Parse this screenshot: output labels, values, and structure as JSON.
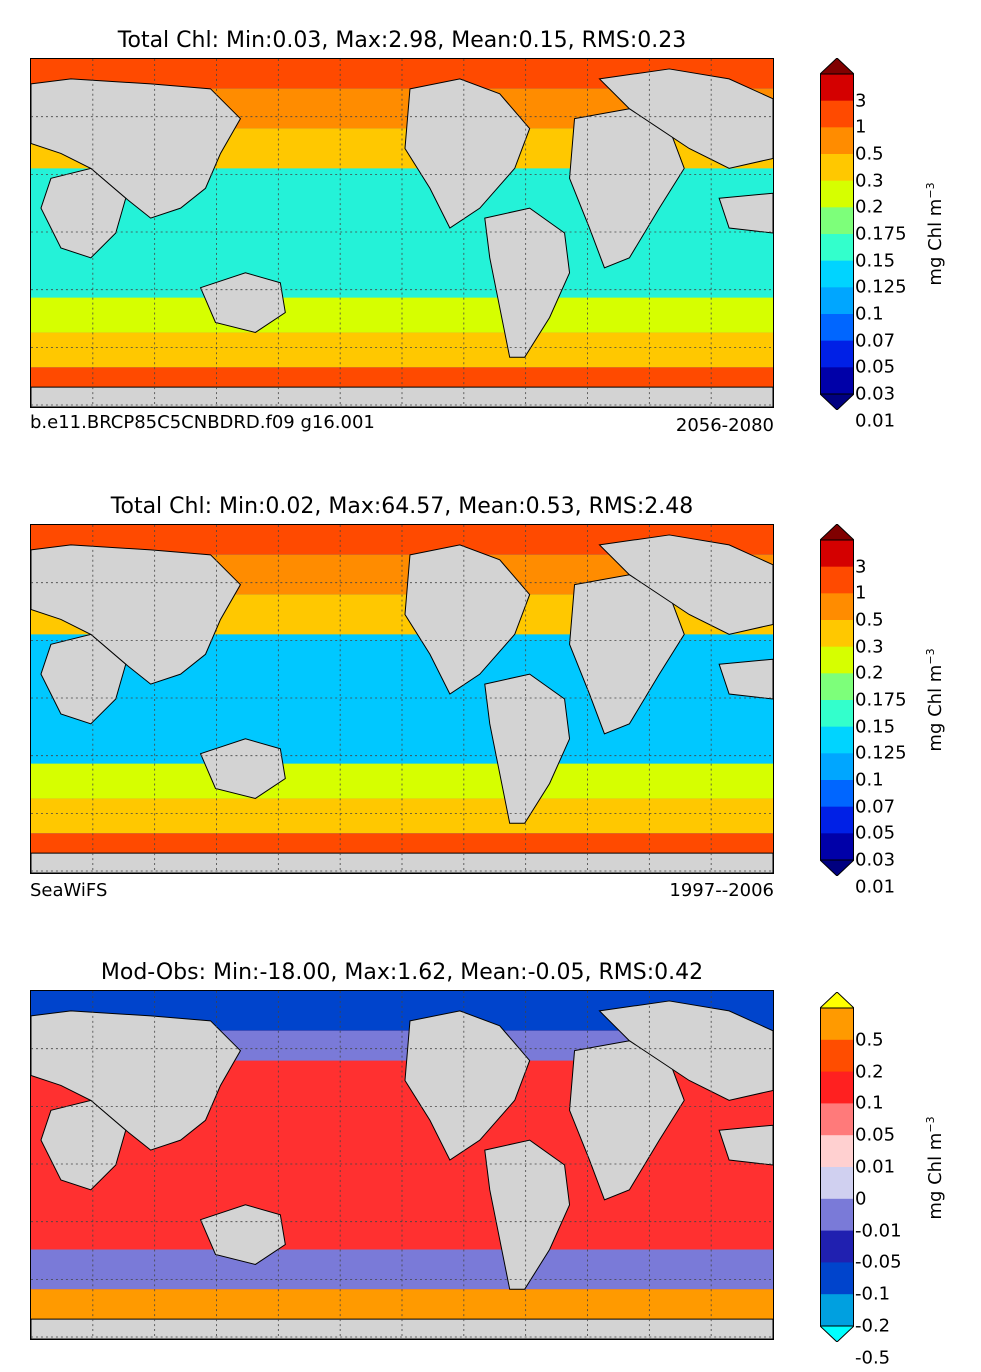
{
  "panels": [
    {
      "title": "Total Chl: Min:0.03, Max:2.98, Mean:0.15, RMS:0.23",
      "caption_left": "b.e11.BRCP85C5CNBDRD.f09 g16.001",
      "caption_right": "2056-2080",
      "colorbar_labels": [
        "3",
        "1",
        "0.5",
        "0.3",
        "0.2",
        "0.175",
        "0.15",
        "0.125",
        "0.1",
        "0.07",
        "0.05",
        "0.03",
        "0.01"
      ],
      "colorbar_units": "mg Chl m",
      "colorbar_units_exp": "−3",
      "colors": [
        "#800000",
        "#d40000",
        "#ff4a00",
        "#ff8c00",
        "#ffc800",
        "#d6ff00",
        "#7dff7a",
        "#33ffcc",
        "#00d4ff",
        "#00a6ff",
        "#0066ff",
        "#0020e6",
        "#0000a8",
        "#000080"
      ],
      "ocean_fill": "#24f2d8"
    },
    {
      "title": "Total Chl: Min:0.02, Max:64.57, Mean:0.53, RMS:2.48",
      "caption_left": "SeaWiFS",
      "caption_right": "1997--2006",
      "colorbar_labels": [
        "3",
        "1",
        "0.5",
        "0.3",
        "0.2",
        "0.175",
        "0.15",
        "0.125",
        "0.1",
        "0.07",
        "0.05",
        "0.03",
        "0.01"
      ],
      "colorbar_units": "mg Chl m",
      "colorbar_units_exp": "−3",
      "colors": [
        "#800000",
        "#d40000",
        "#ff4a00",
        "#ff8c00",
        "#ffc800",
        "#d6ff00",
        "#7dff7a",
        "#33ffcc",
        "#00d4ff",
        "#00a6ff",
        "#0066ff",
        "#0020e6",
        "#0000a8",
        "#000080"
      ],
      "ocean_fill": "#00c8ff"
    },
    {
      "title": "Mod-Obs: Min:-18.00, Max:1.62, Mean:-0.05, RMS:0.42",
      "caption_left": "",
      "caption_right": "",
      "colorbar_labels": [
        "0.5",
        "0.2",
        "0.1",
        "0.05",
        "0.01",
        "0",
        "-0.01",
        "-0.05",
        "-0.1",
        "-0.2",
        "-0.5"
      ],
      "colorbar_units": "mg Chl m",
      "colorbar_units_exp": "−3",
      "colors": [
        "#ffff00",
        "#ff9a00",
        "#ff4d00",
        "#ff2020",
        "#ff7a7a",
        "#ffd0d0",
        "#d0d0f0",
        "#7a7ad8",
        "#2020b0",
        "#0044cc",
        "#00a0e0",
        "#00ffff"
      ],
      "ocean_fill": "#ff3030"
    }
  ]
}
